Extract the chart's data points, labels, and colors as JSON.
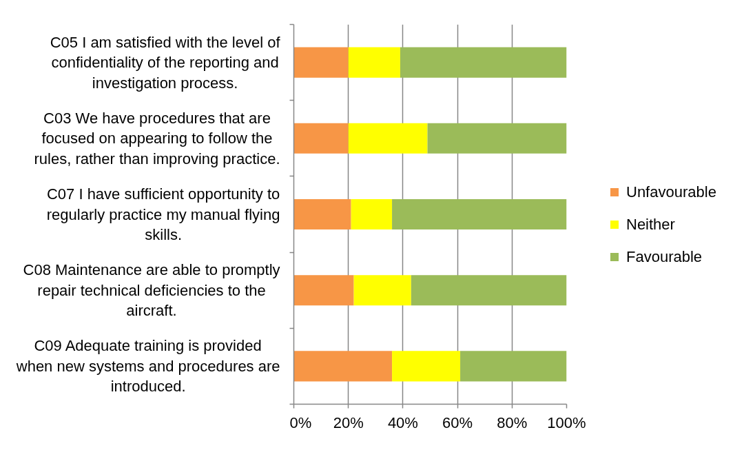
{
  "chart_data": {
    "type": "bar",
    "orientation": "horizontal",
    "stacked": true,
    "categories": [
      "C05 I am satisfied with the level of confidentiality of the reporting and investigation process.",
      "C03 We have procedures that are focused on appearing to follow the rules, rather than improving practice.",
      "C07 I have sufficient opportunity to regularly practice my manual flying skills.",
      "C08 Maintenance are able to promptly repair technical deficiencies to the aircraft.",
      "C09 Adequate training is provided when new systems and procedures are introduced."
    ],
    "series": [
      {
        "name": "Unfavourable",
        "color": "#f79646",
        "values": [
          20,
          20,
          21,
          22,
          36
        ]
      },
      {
        "name": "Neither",
        "color": "#ffff00",
        "values": [
          19,
          29,
          15,
          21,
          25
        ]
      },
      {
        "name": "Favourable",
        "color": "#9bbb59",
        "values": [
          61,
          51,
          64,
          57,
          39
        ]
      }
    ],
    "xlim": [
      0,
      100
    ],
    "xticks": [
      {
        "value": 0,
        "label": "0%"
      },
      {
        "value": 20,
        "label": "20%"
      },
      {
        "value": 40,
        "label": "40%"
      },
      {
        "value": 60,
        "label": "60%"
      },
      {
        "value": 80,
        "label": "80%"
      },
      {
        "value": 100,
        "label": "100%"
      }
    ],
    "grid": "x",
    "legend": "right"
  }
}
